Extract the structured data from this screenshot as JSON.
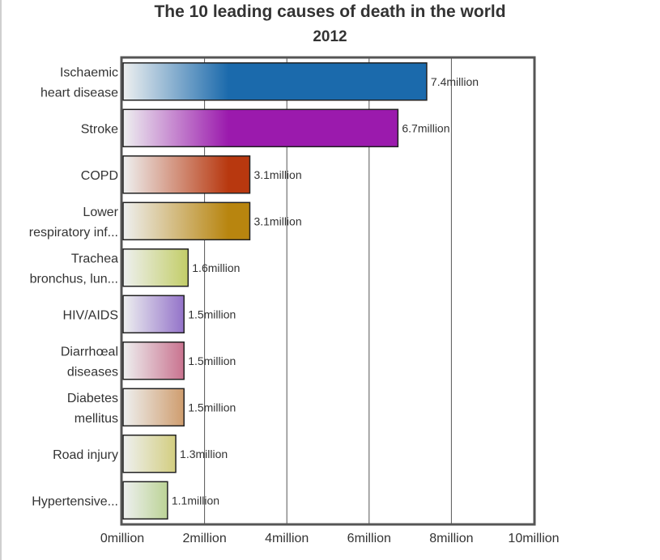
{
  "chart_data": {
    "type": "bar",
    "orientation": "horizontal",
    "title": "The 10 leading causes of death in the world",
    "subtitle": "2012",
    "categories": [
      [
        "Ischaemic",
        "heart disease"
      ],
      [
        "Stroke"
      ],
      [
        "COPD"
      ],
      [
        "Lower",
        "respiratory inf..."
      ],
      [
        "Trachea",
        "bronchus, lun..."
      ],
      [
        "HIV/AIDS"
      ],
      [
        "Diarrhœal",
        "diseases"
      ],
      [
        "Diabetes",
        "mellitus"
      ],
      [
        "Road injury"
      ],
      [
        "Hypertensive..."
      ]
    ],
    "values": [
      7.4,
      6.7,
      3.1,
      3.1,
      1.6,
      1.5,
      1.5,
      1.5,
      1.3,
      1.1
    ],
    "value_labels": [
      "7.4million",
      "6.7million",
      "3.1million",
      "3.1million",
      "1.6million",
      "1.5million",
      "1.5million",
      "1.5million",
      "1.3million",
      "1.1million"
    ],
    "colors": [
      "#1b6aac",
      "#9b1aad",
      "#b8380f",
      "#b8850f",
      "#a8b813",
      "#5117ad",
      "#ae1748",
      "#b8600f",
      "#b8ab10",
      "#76ab1a"
    ],
    "xlim": [
      0,
      10
    ],
    "xticks": [
      0,
      2,
      4,
      6,
      8,
      10
    ],
    "xtick_labels": [
      "0million",
      "2million",
      "4million",
      "6million",
      "8million",
      "10million"
    ],
    "grid": true,
    "legend": "none"
  }
}
